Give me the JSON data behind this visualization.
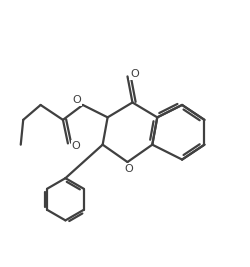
{
  "background_color": "#ffffff",
  "line_color": "#404040",
  "line_width": 1.6,
  "fig_width": 2.5,
  "fig_height": 2.67,
  "dpi": 100,
  "xlim": [
    0.0,
    10.0
  ],
  "ylim": [
    0.0,
    10.7
  ]
}
